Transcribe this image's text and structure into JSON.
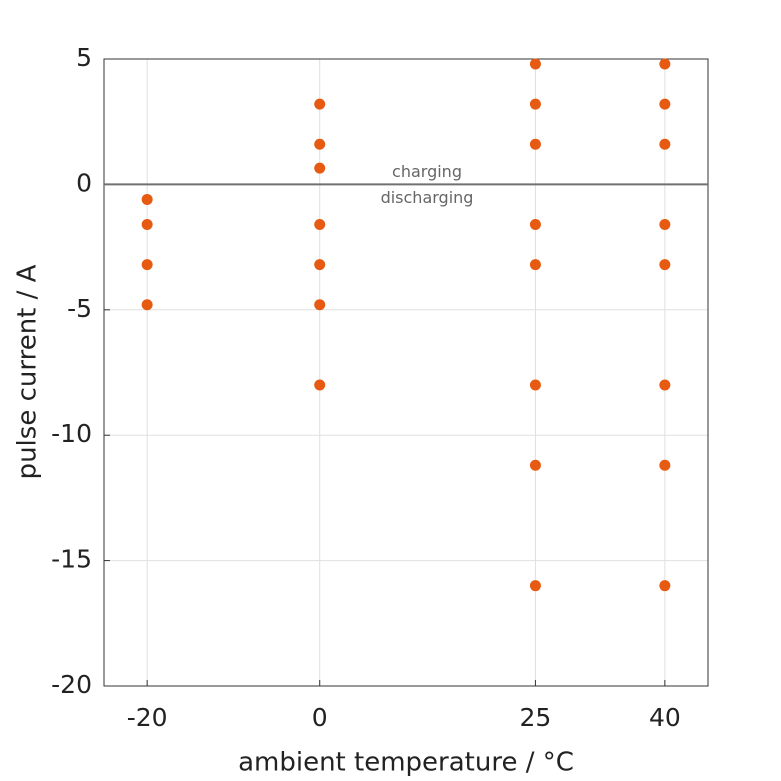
{
  "chart_data": {
    "type": "scatter",
    "x": [
      -20,
      -20,
      -20,
      -20,
      0,
      0,
      0,
      0,
      0,
      0,
      0,
      25,
      25,
      25,
      25,
      25,
      25,
      25,
      25,
      40,
      40,
      40,
      40,
      40,
      40,
      40,
      40
    ],
    "values": [
      -0.6,
      -1.6,
      -3.2,
      -4.8,
      3.2,
      1.6,
      0.65,
      -1.6,
      -3.2,
      -4.8,
      -8,
      4.8,
      3.2,
      1.6,
      -1.6,
      -3.2,
      -8,
      -11.2,
      -16,
      4.8,
      3.2,
      1.6,
      -1.6,
      -3.2,
      -8,
      -11.2,
      -16
    ],
    "color": "#e65a12",
    "x_label": "ambient temperature / °C",
    "y_label": "pulse current / A",
    "xlim": [
      -25,
      45
    ],
    "xticks": [
      -20,
      0,
      25,
      40
    ],
    "ylim": [
      -20,
      5
    ],
    "yticks": [
      5,
      0,
      -5,
      -10,
      -15,
      -20
    ],
    "grid": true,
    "reference_line": 0,
    "annotations": [
      "charging",
      "discharging"
    ]
  }
}
